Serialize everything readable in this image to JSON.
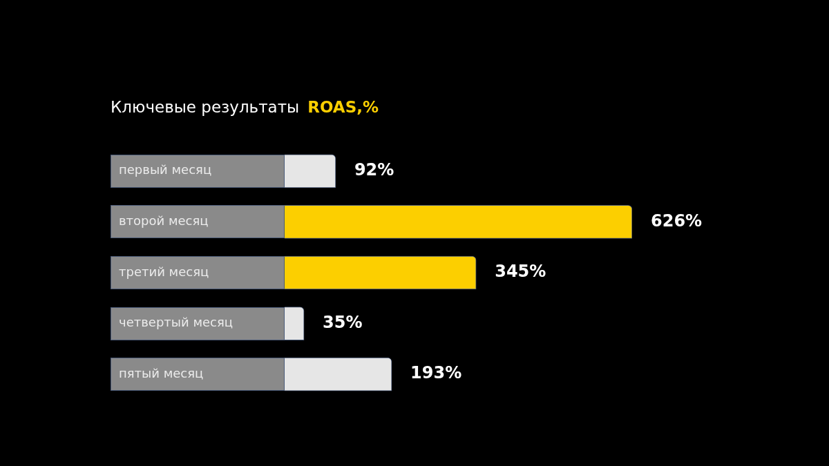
{
  "chart_data": {
    "type": "bar",
    "orientation": "horizontal",
    "title": "Ключевые результаты",
    "subtitle": "ROAS,%",
    "categories": [
      "первый месяц",
      "второй месяц",
      "третий месяц",
      "четвертый месяц",
      "пятый месяц"
    ],
    "values": [
      92,
      626,
      345,
      35,
      193
    ],
    "colors": [
      "#e6e6e6",
      "#fccf00",
      "#fccf00",
      "#e6e6e6",
      "#e6e6e6"
    ],
    "value_labels": [
      "92%",
      "626%",
      "345%",
      "35%",
      "193%"
    ],
    "tick_labels": "y",
    "grid": false,
    "legend": false
  }
}
